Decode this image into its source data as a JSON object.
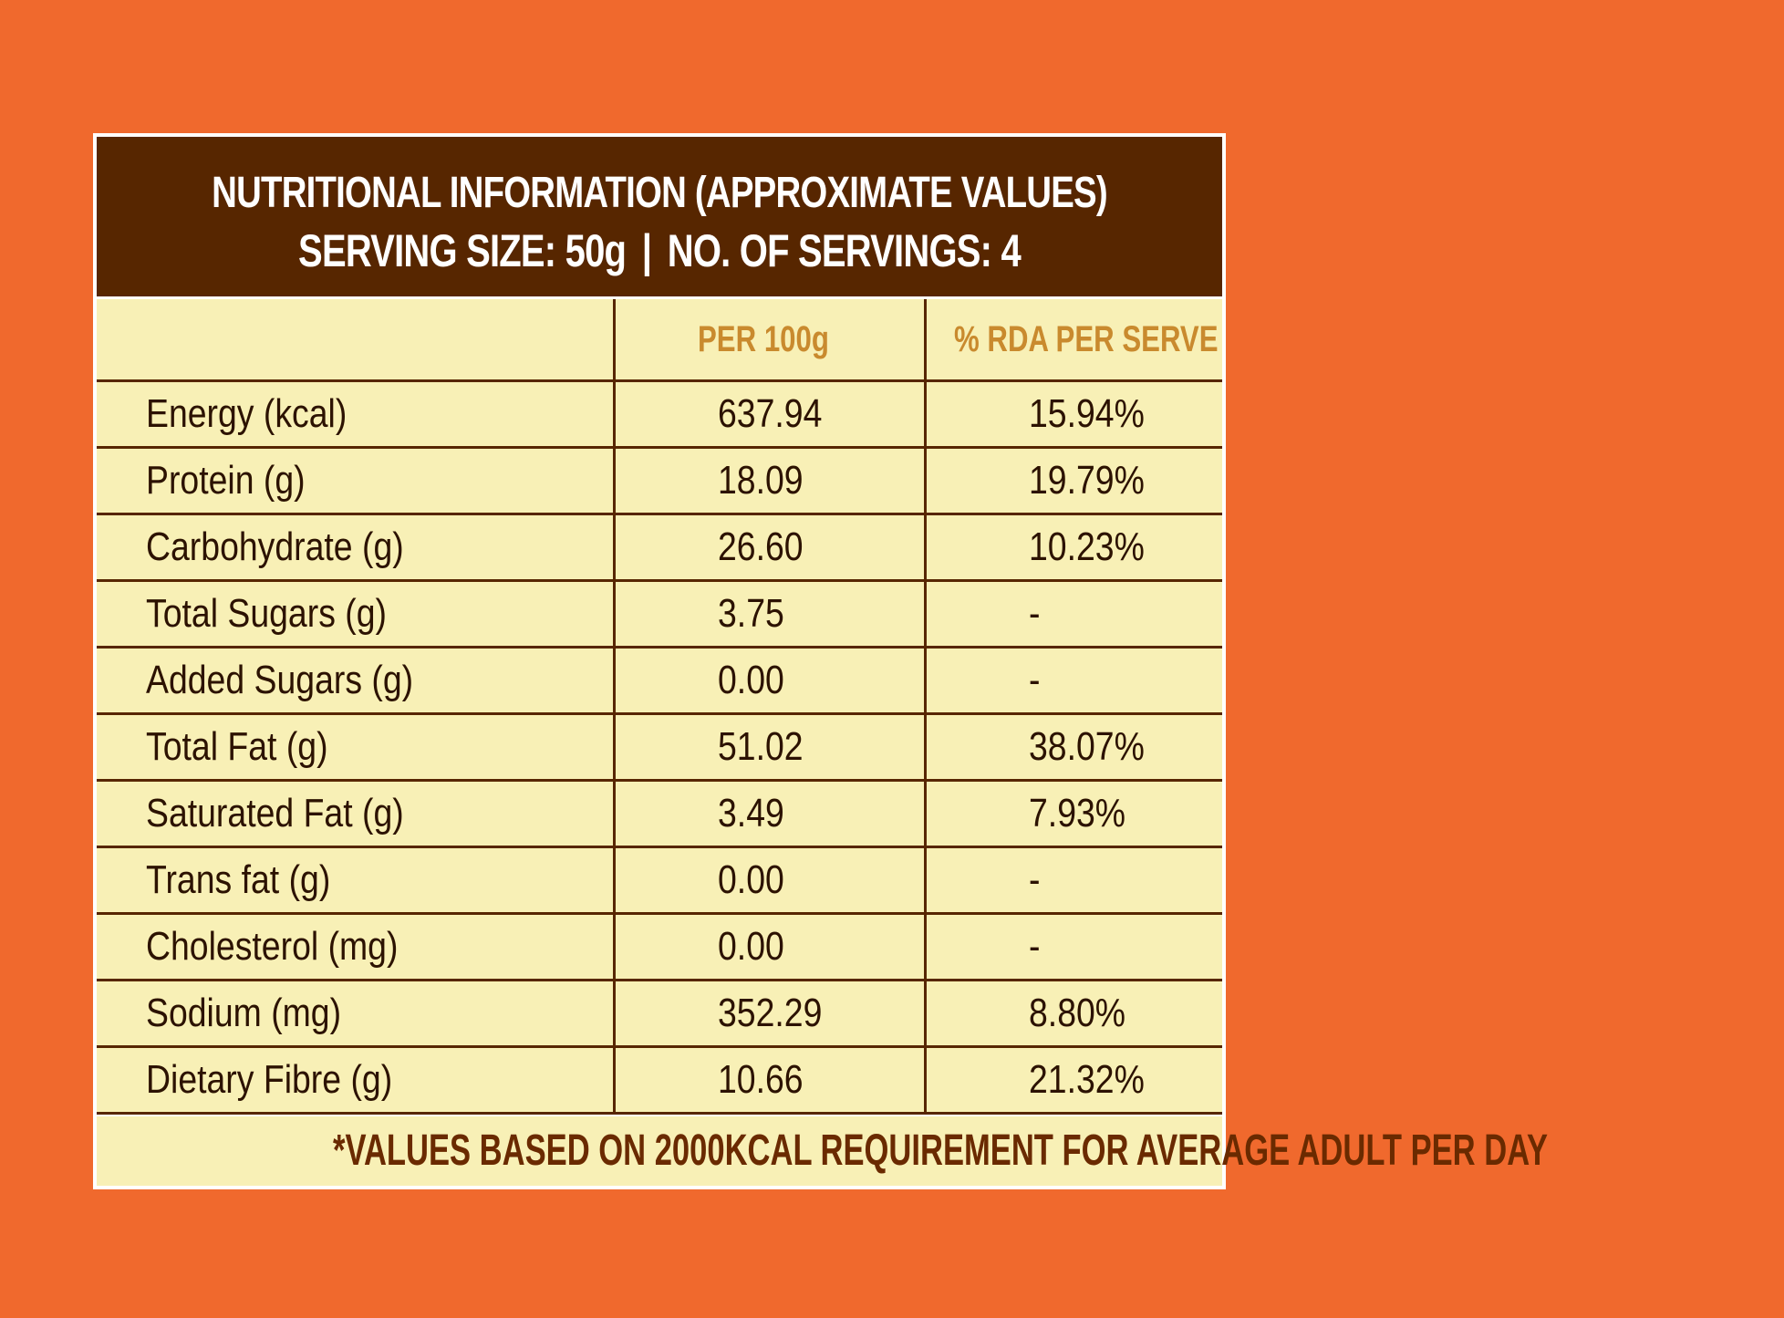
{
  "colors": {
    "page_background": "#f0692d",
    "header_background": "#572600",
    "table_background": "#f8f0b6",
    "header_text": "#ffffff",
    "column_header_text": "#c98a2e",
    "body_text": "#2c1200",
    "rule": "#572600"
  },
  "header": {
    "title": "NUTRITIONAL INFORMATION (APPROXIMATE VALUES)",
    "serving_size": "SERVING SIZE: 50g",
    "separator": "|",
    "servings": "NO. OF SERVINGS: 4"
  },
  "table": {
    "columns": [
      "",
      "PER 100g",
      "% RDA PER SERVE"
    ],
    "rows": [
      {
        "name": "Energy (kcal)",
        "per100": "637.94",
        "rda": "15.94%"
      },
      {
        "name": "Protein (g)",
        "per100": "18.09",
        "rda": "19.79%"
      },
      {
        "name": "Carbohydrate (g)",
        "per100": "26.60",
        "rda": "10.23%"
      },
      {
        "name": "Total Sugars (g)",
        "per100": "3.75",
        "rda": "-"
      },
      {
        "name": "Added Sugars (g)",
        "per100": "0.00",
        "rda": "-"
      },
      {
        "name": "Total Fat (g)",
        "per100": "51.02",
        "rda": "38.07%"
      },
      {
        "name": "Saturated Fat (g)",
        "per100": "3.49",
        "rda": "7.93%"
      },
      {
        "name": "Trans fat (g)",
        "per100": "0.00",
        "rda": "-"
      },
      {
        "name": "Cholesterol (mg)",
        "per100": "0.00",
        "rda": "-"
      },
      {
        "name": "Sodium (mg)",
        "per100": "352.29",
        "rda": "8.80%"
      },
      {
        "name": "Dietary Fibre (g)",
        "per100": "10.66",
        "rda": "21.32%"
      }
    ]
  },
  "footnote": "*VALUES BASED ON 2000KCAL REQUIREMENT FOR AVERAGE ADULT PER DAY"
}
